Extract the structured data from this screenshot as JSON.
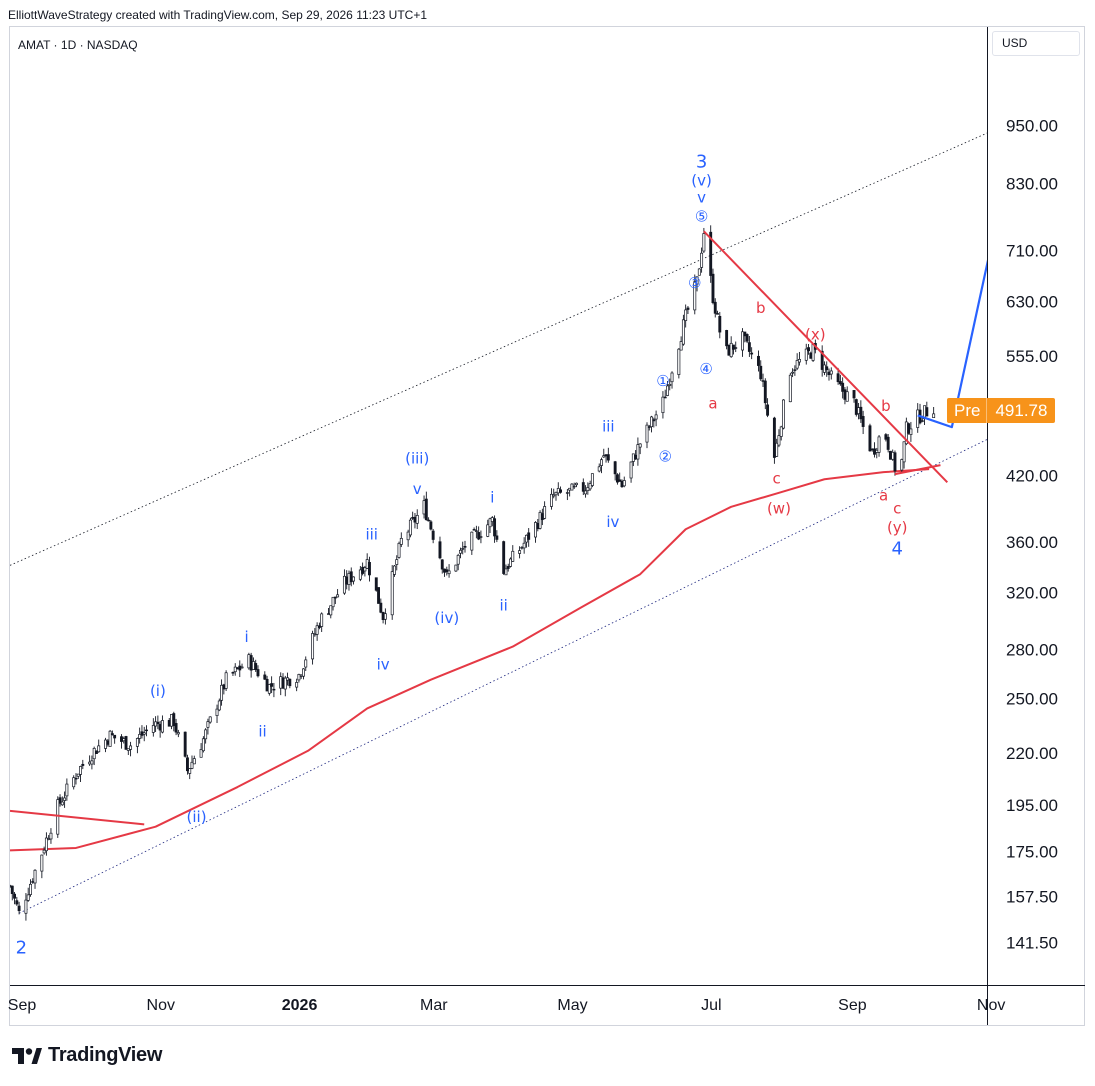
{
  "header": {
    "attribution": "ElliottWaveStrategy created with TradingView.com, Sep 29, 2026 11:23 UTC+1"
  },
  "symbol": "AMAT · 1D · NASDAQ",
  "currency": "USD",
  "price_badge": {
    "label": "Pre",
    "value": "491.78"
  },
  "branding": {
    "logo_text": "TradingView",
    "logo_icon": "tradingview-logo-icon"
  },
  "colors": {
    "wave_blue": "#2962ff",
    "correction_red": "#e53945",
    "ma_red": "#e53945",
    "candle": "#131722",
    "badge_orange": "#f7931a",
    "projection_blue": "#2962ff"
  },
  "chart_data": {
    "type": "candlestick",
    "title": "",
    "xlabel": "",
    "ylabel": "",
    "scale": "log",
    "ylim": [
      128,
      1160
    ],
    "x_ticks": [
      "Sep",
      "Nov",
      "2026",
      "Mar",
      "May",
      "Jul",
      "Sep",
      "Nov"
    ],
    "y_ticks": [
      950,
      830,
      710,
      630,
      555,
      420,
      360,
      320,
      280,
      250,
      220,
      195,
      175,
      157.5,
      141.5
    ],
    "y_tick_labels": [
      "950.00",
      "830.00",
      "710.00",
      "630.00",
      "555.00",
      "420.00",
      "360.00",
      "320.00",
      "280.00",
      "250.00",
      "220.00",
      "195.00",
      "175.00",
      "157.50",
      "141.50"
    ],
    "price_path": [
      [
        "2025-09-01",
        162
      ],
      [
        "2025-09-05",
        152
      ],
      [
        "2025-09-15",
        175
      ],
      [
        "2025-09-22",
        195
      ],
      [
        "2025-10-01",
        212
      ],
      [
        "2025-10-08",
        222
      ],
      [
        "2025-10-15",
        230
      ],
      [
        "2025-10-24",
        225
      ],
      [
        "2025-11-03",
        236
      ],
      [
        "2025-11-12",
        238
      ],
      [
        "2025-11-18",
        212
      ],
      [
        "2025-11-25",
        228
      ],
      [
        "2025-12-05",
        262
      ],
      [
        "2025-12-15",
        274
      ],
      [
        "2025-12-24",
        258
      ],
      [
        "2026-01-06",
        265
      ],
      [
        "2026-01-15",
        300
      ],
      [
        "2026-01-26",
        328
      ],
      [
        "2026-02-05",
        345
      ],
      [
        "2026-02-12",
        304
      ],
      [
        "2026-02-20",
        362
      ],
      [
        "2026-03-02",
        393
      ],
      [
        "2026-03-12",
        333
      ],
      [
        "2026-03-20",
        358
      ],
      [
        "2026-04-01",
        380
      ],
      [
        "2026-04-06",
        338
      ],
      [
        "2026-04-15",
        360
      ],
      [
        "2026-04-28",
        402
      ],
      [
        "2026-05-12",
        410
      ],
      [
        "2026-05-20",
        442
      ],
      [
        "2026-05-28",
        412
      ],
      [
        "2026-06-05",
        455
      ],
      [
        "2026-06-15",
        500
      ],
      [
        "2026-06-25",
        610
      ],
      [
        "2026-06-30",
        662
      ],
      [
        "2026-07-03",
        745
      ],
      [
        "2026-07-07",
        640
      ],
      [
        "2026-07-12",
        560
      ],
      [
        "2026-07-20",
        580
      ],
      [
        "2026-07-28",
        535
      ],
      [
        "2026-08-03",
        440
      ],
      [
        "2026-08-10",
        540
      ],
      [
        "2026-08-20",
        565
      ],
      [
        "2026-08-29",
        525
      ],
      [
        "2026-09-07",
        500
      ],
      [
        "2026-09-15",
        445
      ],
      [
        "2026-09-20",
        470
      ],
      [
        "2026-09-25",
        430
      ],
      [
        "2026-09-27",
        420
      ],
      [
        "2026-09-30",
        470
      ],
      [
        "2026-10-05",
        483
      ],
      [
        "2026-10-12",
        495
      ]
    ],
    "moving_average": [
      [
        "2025-09-01",
        176
      ],
      [
        "2025-09-30",
        177
      ],
      [
        "2025-11-04",
        186
      ],
      [
        "2025-12-10",
        204
      ],
      [
        "2026-01-10",
        222
      ],
      [
        "2026-02-05",
        245
      ],
      [
        "2026-03-05",
        262
      ],
      [
        "2026-04-10",
        283
      ],
      [
        "2026-05-10",
        310
      ],
      [
        "2026-06-05",
        335
      ],
      [
        "2026-06-25",
        372
      ],
      [
        "2026-07-15",
        392
      ],
      [
        "2026-08-05",
        405
      ],
      [
        "2026-08-25",
        418
      ],
      [
        "2026-09-20",
        425
      ],
      [
        "2026-10-10",
        428
      ]
    ],
    "channel": {
      "upper": [
        [
          "2025-09-01",
          342
        ],
        [
          "2026-11-15",
          960
        ]
      ],
      "lower": [
        [
          "2025-09-05",
          152
        ],
        [
          "2026-11-30",
          490
        ]
      ]
    },
    "trendlines": [
      {
        "from": [
          "2026-07-03",
          745
        ],
        "to": [
          "2026-10-18",
          415
        ]
      },
      {
        "from": [
          "2025-09-01",
          193
        ],
        "to": [
          "2025-10-30",
          187
        ]
      },
      {
        "from": [
          "2026-09-25",
          423
        ],
        "to": [
          "2026-10-15",
          432
        ]
      }
    ],
    "projection": [
      [
        "2026-10-05",
        485
      ],
      [
        "2026-10-20",
        472
      ],
      [
        "2026-11-18",
        960
      ]
    ],
    "annotations": [
      {
        "text": "2",
        "date": "2025-09-06",
        "price": 140,
        "color": "blue",
        "size": "large"
      },
      {
        "text": "(i)",
        "date": "2025-11-05",
        "price": 255,
        "color": "blue"
      },
      {
        "text": "(ii)",
        "date": "2025-11-22",
        "price": 190,
        "color": "blue"
      },
      {
        "text": "i",
        "date": "2025-12-14",
        "price": 289,
        "color": "blue"
      },
      {
        "text": "ii",
        "date": "2025-12-21",
        "price": 232,
        "color": "blue"
      },
      {
        "text": "iii",
        "date": "2026-02-07",
        "price": 367,
        "color": "blue"
      },
      {
        "text": "iv",
        "date": "2026-02-12",
        "price": 271,
        "color": "blue"
      },
      {
        "text": "(iii)",
        "date": "2026-02-27",
        "price": 438,
        "color": "blue"
      },
      {
        "text": "v",
        "date": "2026-02-27",
        "price": 408,
        "color": "blue"
      },
      {
        "text": "(iv)",
        "date": "2026-03-12",
        "price": 302,
        "color": "blue"
      },
      {
        "text": "i",
        "date": "2026-04-01",
        "price": 400,
        "color": "blue"
      },
      {
        "text": "ii",
        "date": "2026-04-06",
        "price": 311,
        "color": "blue"
      },
      {
        "text": "iii",
        "date": "2026-05-22",
        "price": 472,
        "color": "blue"
      },
      {
        "text": "iv",
        "date": "2026-05-24",
        "price": 378,
        "color": "blue"
      },
      {
        "text": "①",
        "date": "2026-06-15",
        "price": 525,
        "color": "blue"
      },
      {
        "text": "②",
        "date": "2026-06-16",
        "price": 440,
        "color": "blue"
      },
      {
        "text": "③",
        "date": "2026-06-29",
        "price": 660,
        "color": "blue"
      },
      {
        "text": "④",
        "date": "2026-07-04",
        "price": 540,
        "color": "blue"
      },
      {
        "text": "⑤",
        "date": "2026-07-02",
        "price": 770,
        "color": "blue"
      },
      {
        "text": "v",
        "date": "2026-07-02",
        "price": 805,
        "color": "blue"
      },
      {
        "text": "(v)",
        "date": "2026-07-02",
        "price": 838,
        "color": "blue"
      },
      {
        "text": "3",
        "date": "2026-07-02",
        "price": 875,
        "color": "blue",
        "size": "large"
      },
      {
        "text": "a",
        "date": "2026-07-07",
        "price": 498,
        "color": "red"
      },
      {
        "text": "b",
        "date": "2026-07-28",
        "price": 622,
        "color": "red"
      },
      {
        "text": "c",
        "date": "2026-08-04",
        "price": 418,
        "color": "red"
      },
      {
        "text": "(w)",
        "date": "2026-08-05",
        "price": 390,
        "color": "red"
      },
      {
        "text": "(x)",
        "date": "2026-08-21",
        "price": 585,
        "color": "red"
      },
      {
        "text": "b",
        "date": "2026-09-21",
        "price": 495,
        "color": "red"
      },
      {
        "text": "a",
        "date": "2026-09-20",
        "price": 402,
        "color": "red"
      },
      {
        "text": "c",
        "date": "2026-09-26",
        "price": 390,
        "color": "red"
      },
      {
        "text": "(y)",
        "date": "2026-09-26",
        "price": 373,
        "color": "red"
      },
      {
        "text": "4",
        "date": "2026-09-26",
        "price": 355,
        "color": "blue",
        "size": "large"
      }
    ],
    "grid": false,
    "legend": "none"
  }
}
